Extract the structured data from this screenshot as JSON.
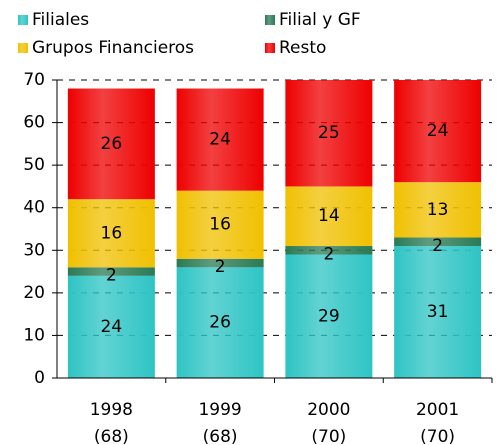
{
  "chart_data": {
    "type": "bar",
    "stacked": true,
    "categories": [
      "1998",
      "1999",
      "2000",
      "2001"
    ],
    "category_sublabels": [
      "(68)",
      "(68)",
      "(70)",
      "(70)"
    ],
    "series": [
      {
        "name": "Filiales",
        "color": "#2ec4c4",
        "values": [
          24,
          26,
          29,
          31
        ]
      },
      {
        "name": "Filial y GF",
        "color": "#2a7a55",
        "values": [
          2,
          2,
          2,
          2
        ]
      },
      {
        "name": "Grupos Financieros",
        "color": "#f0c000",
        "values": [
          16,
          16,
          14,
          13
        ]
      },
      {
        "name": "Resto",
        "color": "#ee0000",
        "values": [
          26,
          24,
          25,
          24
        ]
      }
    ],
    "ylim": [
      0,
      70
    ],
    "yticks": [
      0,
      10,
      20,
      30,
      40,
      50,
      60,
      70
    ],
    "grid": true
  }
}
